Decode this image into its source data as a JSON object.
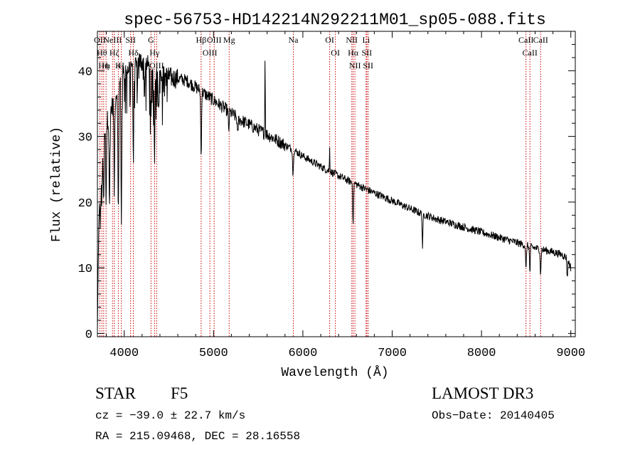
{
  "chart_data": {
    "type": "line",
    "title": "spec-56753-HD142214N292211M01_sp05-088.fits",
    "xlabel": "Wavelength (Å)",
    "ylabel": "Flux (relative)",
    "xlim": [
      3700,
      9050
    ],
    "ylim": [
      -0.5,
      46
    ],
    "xticks": [
      4000,
      5000,
      6000,
      7000,
      8000,
      9000
    ],
    "xtick_labels": [
      "4000",
      "5000",
      "6000",
      "7000",
      "8000",
      "9000"
    ],
    "yticks": [
      0,
      10,
      20,
      30,
      40
    ],
    "ytick_labels": [
      "0",
      "10",
      "20",
      "30",
      "40"
    ],
    "grid": false,
    "series": [
      {
        "name": "spectrum",
        "color": "#000000",
        "continuum": [
          [
            3700,
            0
          ],
          [
            3712,
            14
          ],
          [
            3730,
            22
          ],
          [
            3760,
            28
          ],
          [
            3800,
            32
          ],
          [
            3850,
            34
          ],
          [
            3900,
            36
          ],
          [
            3950,
            38
          ],
          [
            4000,
            40
          ],
          [
            4100,
            41
          ],
          [
            4200,
            41.5
          ],
          [
            4300,
            40.5
          ],
          [
            4400,
            39.5
          ],
          [
            4500,
            39
          ],
          [
            4600,
            38.8
          ],
          [
            4700,
            38.5
          ],
          [
            4800,
            37.5
          ],
          [
            4900,
            36.5
          ],
          [
            5000,
            35.5
          ],
          [
            5100,
            34.5
          ],
          [
            5200,
            33.5
          ],
          [
            5300,
            32.5
          ],
          [
            5400,
            31.8
          ],
          [
            5500,
            31
          ],
          [
            5600,
            30.3
          ],
          [
            5700,
            29.5
          ],
          [
            5800,
            28.7
          ],
          [
            5900,
            27.9
          ],
          [
            6000,
            27
          ],
          [
            6100,
            26.2
          ],
          [
            6200,
            25.4
          ],
          [
            6300,
            24.7
          ],
          [
            6400,
            24
          ],
          [
            6500,
            23.3
          ],
          [
            6600,
            22.7
          ],
          [
            6700,
            22
          ],
          [
            6800,
            21.4
          ],
          [
            6900,
            20.8
          ],
          [
            7000,
            20.2
          ],
          [
            7100,
            19.6
          ],
          [
            7200,
            19
          ],
          [
            7300,
            18.4
          ],
          [
            7400,
            17.9
          ],
          [
            7500,
            17.4
          ],
          [
            7600,
            17
          ],
          [
            7700,
            16.6
          ],
          [
            7800,
            16.2
          ],
          [
            7900,
            15.8
          ],
          [
            8000,
            15.4
          ],
          [
            8100,
            15
          ],
          [
            8200,
            14.6
          ],
          [
            8300,
            14.2
          ],
          [
            8400,
            13.8
          ],
          [
            8500,
            13.4
          ],
          [
            8600,
            13
          ],
          [
            8700,
            12.7
          ],
          [
            8800,
            12.4
          ],
          [
            8900,
            12
          ],
          [
            8960,
            11.5
          ],
          [
            9000,
            10
          ]
        ],
        "absorption": [
          [
            3734,
            6
          ],
          [
            3750,
            6
          ],
          [
            3770,
            9
          ],
          [
            3797,
            11
          ],
          [
            3835,
            14
          ],
          [
            3889,
            14
          ],
          [
            3934,
            20
          ],
          [
            3968,
            22
          ],
          [
            4102,
            15
          ],
          [
            4227,
            5
          ],
          [
            4300,
            9
          ],
          [
            4340,
            14
          ],
          [
            4384,
            4
          ],
          [
            4861,
            10
          ],
          [
            5170,
            3
          ],
          [
            5270,
            3
          ],
          [
            5890,
            4
          ],
          [
            6563,
            6
          ],
          [
            7340,
            5
          ],
          [
            8498,
            4
          ],
          [
            8542,
            4
          ],
          [
            8662,
            4
          ],
          [
            8960,
            3
          ]
        ],
        "emission": [
          [
            5577,
            13
          ],
          [
            6300,
            4
          ]
        ]
      }
    ],
    "line_markers": {
      "color": "#cc0000",
      "lines": [
        {
          "wavelength": 3727,
          "labels": [
            "OII"
          ]
        },
        {
          "wavelength": 3750,
          "labels": [
            "Hθ"
          ]
        },
        {
          "wavelength": 3770,
          "labels": [
            "Hη"
          ]
        },
        {
          "wavelength": 3797,
          "labels": [
            "Hι"
          ]
        },
        {
          "wavelength": 3869,
          "labels": [
            "NeIII"
          ]
        },
        {
          "wavelength": 3889,
          "labels": [
            "Hζ"
          ]
        },
        {
          "wavelength": 3934,
          "labels": [
            "K"
          ]
        },
        {
          "wavelength": 3968,
          "labels": [
            "H"
          ]
        },
        {
          "wavelength": 4072,
          "labels": [
            "SII"
          ]
        },
        {
          "wavelength": 4102,
          "labels": [
            "Hδ"
          ]
        },
        {
          "wavelength": 4300,
          "labels": [
            "G"
          ]
        },
        {
          "wavelength": 4340,
          "labels": [
            "Hγ"
          ]
        },
        {
          "wavelength": 4363,
          "labels": [
            "OIII"
          ]
        },
        {
          "wavelength": 4861,
          "labels": [
            "Hβ"
          ]
        },
        {
          "wavelength": 4959,
          "labels": [
            "OIII"
          ]
        },
        {
          "wavelength": 5007,
          "labels": [
            "OIII"
          ]
        },
        {
          "wavelength": 5175,
          "labels": [
            "Mg"
          ]
        },
        {
          "wavelength": 5893,
          "labels": [
            "Na"
          ]
        },
        {
          "wavelength": 6300,
          "labels": [
            "OI"
          ]
        },
        {
          "wavelength": 6364,
          "labels": [
            "OI"
          ]
        },
        {
          "wavelength": 6548,
          "labels": [
            "NII"
          ]
        },
        {
          "wavelength": 6563,
          "labels": [
            "Hα"
          ]
        },
        {
          "wavelength": 6583,
          "labels": [
            "NII"
          ]
        },
        {
          "wavelength": 6708,
          "labels": [
            "Li"
          ]
        },
        {
          "wavelength": 6716,
          "labels": [
            "SII"
          ]
        },
        {
          "wavelength": 6731,
          "labels": [
            "SII"
          ]
        },
        {
          "wavelength": 8498,
          "labels": [
            "CaII"
          ]
        },
        {
          "wavelength": 8542,
          "labels": [
            "CaII"
          ]
        },
        {
          "wavelength": 8662,
          "labels": [
            "CaII"
          ]
        }
      ]
    }
  },
  "info": {
    "object_class": "STAR",
    "subclass": "F5",
    "survey": "LAMOST DR3",
    "cz": "cz = −39.0 ± 22.7 km/s",
    "obs_date": "Obs−Date: 20140405",
    "coords": "RA = 215.09468, DEC =  28.16558"
  }
}
